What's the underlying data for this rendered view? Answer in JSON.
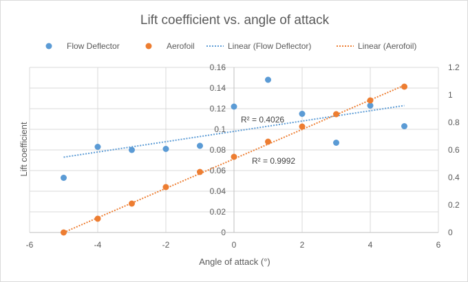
{
  "chart_data": {
    "type": "scatter",
    "title": "Lift coefficient vs. angle of attack",
    "xlabel": "Angle of attack (°)",
    "ylabel": "Lift coefficient",
    "xlim": [
      -6,
      6
    ],
    "ylim_left": [
      0,
      0.16
    ],
    "ylim_right": [
      0,
      1.2
    ],
    "x_ticks": [
      "-6",
      "-4",
      "-2",
      "0",
      "2",
      "4",
      "6"
    ],
    "y_ticks_left": [
      "0",
      "0.02",
      "0.04",
      "0.06",
      "0.08",
      "0.1",
      "0.12",
      "0.14",
      "0.16"
    ],
    "y_ticks_right": [
      "0",
      "0.2",
      "0.4",
      "0.6",
      "0.8",
      "1",
      "1.2"
    ],
    "grid": true,
    "legend_position": "top",
    "series": [
      {
        "name": "Flow Deflector",
        "axis": "left",
        "color": "#5b9bd5",
        "x": [
          -5,
          -4,
          -3,
          -2,
          -1,
          0,
          1,
          2,
          3,
          4,
          5
        ],
        "y": [
          0.053,
          0.083,
          0.08,
          0.081,
          0.084,
          0.122,
          0.148,
          0.115,
          0.087,
          0.123,
          0.103
        ]
      },
      {
        "name": "Aerofoil",
        "axis": "right",
        "color": "#ed7d31",
        "x": [
          -5,
          -4,
          -3,
          -2,
          -1,
          0,
          1,
          2,
          3,
          4,
          5
        ],
        "y": [
          0.0,
          0.1,
          0.21,
          0.33,
          0.44,
          0.55,
          0.66,
          0.77,
          0.86,
          0.96,
          1.06
        ]
      }
    ],
    "trendlines": [
      {
        "name": "Linear (Flow Deflector)",
        "axis": "left",
        "color": "#5b9bd5",
        "x": [
          -5,
          5
        ],
        "y": [
          0.073,
          0.123
        ],
        "r2_label": "R² = 0.4026"
      },
      {
        "name": "Linear (Aerofoil)",
        "axis": "right",
        "color": "#ed7d31",
        "x": [
          -5,
          5
        ],
        "y": [
          0.0,
          1.07
        ],
        "r2_label": "R² = 0.9992"
      }
    ]
  }
}
